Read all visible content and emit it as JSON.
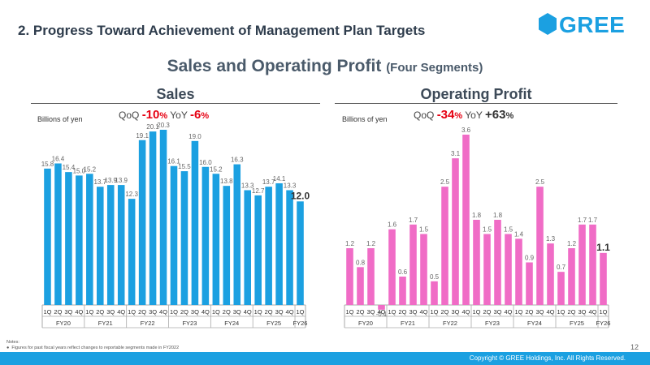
{
  "slide_title": "2. Progress Toward Achievement of Management Plan Targets",
  "logo": {
    "text": "GREE",
    "color": "#1ba0e1"
  },
  "main_title": "Sales and Operating Profit",
  "main_subtitle": "(Four Segments)",
  "sales_title": "Sales",
  "profit_title": "Operating Profit",
  "notes_label": "Notes:",
  "notes_item": "Figures for past fiscal years reflect changes to reportable segments made in FY2022",
  "page_number": "12",
  "copyright": "Copyright © GREE Holdings, Inc. All Rights Reserved.",
  "colors": {
    "sales_bar": "#1ba0e1",
    "profit_bar": "#f06cc6",
    "negative": "#e60012",
    "footer": "#1ba0e1"
  },
  "chart_data": [
    {
      "type": "bar",
      "title": "Sales",
      "unit": "Billions of yen",
      "qoq_label": "QoQ",
      "qoq_value": "-10",
      "qoq_unit": "%",
      "yoy_label": "YoY",
      "yoy_value": "-6",
      "yoy_unit": "%",
      "quarters": [
        "1Q",
        "2Q",
        "3Q",
        "4Q",
        "1Q",
        "2Q",
        "3Q",
        "4Q",
        "1Q",
        "2Q",
        "3Q",
        "4Q",
        "1Q",
        "2Q",
        "3Q",
        "4Q",
        "1Q",
        "2Q",
        "3Q",
        "4Q",
        "1Q",
        "2Q",
        "3Q",
        "4Q",
        "1Q"
      ],
      "fiscal_years": [
        "FY20",
        "FY21",
        "FY22",
        "FY23",
        "FY24",
        "FY25",
        "FY26"
      ],
      "values": [
        15.8,
        16.4,
        15.4,
        15.0,
        15.2,
        13.7,
        13.9,
        13.9,
        12.3,
        19.1,
        20.1,
        20.3,
        16.1,
        15.5,
        19.0,
        16.0,
        15.2,
        13.8,
        16.3,
        13.3,
        12.7,
        13.7,
        14.1,
        13.3,
        12.0
      ],
      "labels": [
        "15.8",
        "16.4",
        "15.4",
        "15.0",
        "15.2",
        "13.7",
        "13.9",
        "13.9",
        "12.3",
        "19.1",
        "20.1",
        "20.3",
        "16.1",
        "15.5",
        "19.0",
        "16.0",
        "15.2",
        "13.8",
        "16.3",
        "13.3",
        "12.7",
        "13.7",
        "14.1",
        "13.3",
        "12.0"
      ],
      "ylim": [
        0,
        20.3
      ]
    },
    {
      "type": "bar",
      "title": "Operating Profit",
      "unit": "Billions of yen",
      "qoq_label": "QoQ",
      "qoq_value": "-34",
      "qoq_unit": "%",
      "yoy_label": "YoY",
      "yoy_value": "+63",
      "yoy_unit": "%",
      "quarters": [
        "1Q",
        "2Q",
        "3Q",
        "4Q",
        "1Q",
        "2Q",
        "3Q",
        "4Q",
        "1Q",
        "2Q",
        "3Q",
        "4Q",
        "1Q",
        "2Q",
        "3Q",
        "4Q",
        "1Q",
        "2Q",
        "3Q",
        "4Q",
        "1Q",
        "2Q",
        "3Q",
        "4Q",
        "1Q"
      ],
      "fiscal_years": [
        "FY20",
        "FY21",
        "FY22",
        "FY23",
        "FY24",
        "FY25",
        "FY26"
      ],
      "values": [
        1.2,
        0.8,
        1.2,
        -0.1,
        1.6,
        0.6,
        1.7,
        1.5,
        0.5,
        2.5,
        3.1,
        3.6,
        1.8,
        1.5,
        1.8,
        1.5,
        1.4,
        0.9,
        2.5,
        1.3,
        0.7,
        1.2,
        1.7,
        1.7,
        1.1
      ],
      "labels": [
        "1.2",
        "0.8",
        "1.2",
        "-0.1",
        "1.6",
        "0.6",
        "1.7",
        "1.5",
        "0.5",
        "2.5",
        "3.1",
        "3.6",
        "1.8",
        "1.5",
        "1.8",
        "1.5",
        "1.4",
        "0.9",
        "2.5",
        "1.3",
        "0.7",
        "1.2",
        "1.7",
        "1.7",
        "1.1"
      ],
      "ylim": [
        -0.1,
        3.6
      ]
    }
  ]
}
